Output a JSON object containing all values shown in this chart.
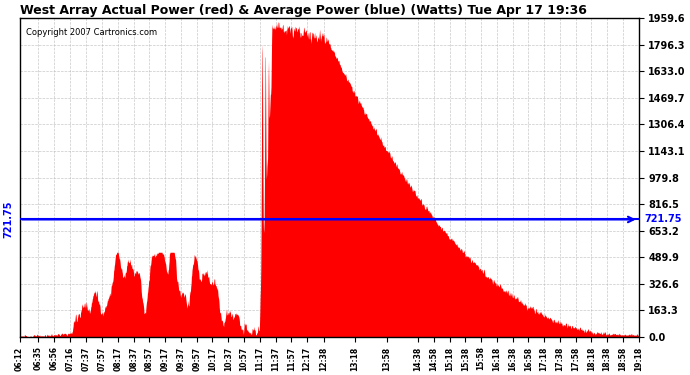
{
  "title": "West Array Actual Power (red) & Average Power (blue) (Watts) Tue Apr 17 19:36",
  "copyright": "Copyright 2007 Cartronics.com",
  "avg_power": 721.75,
  "y_max": 1959.6,
  "y_min": 0.0,
  "y_ticks": [
    0.0,
    163.3,
    326.6,
    489.9,
    653.2,
    816.5,
    979.8,
    1143.1,
    1306.4,
    1469.7,
    1633.0,
    1796.3,
    1959.6
  ],
  "bg_color": "#ffffff",
  "plot_bg_color": "#ffffff",
  "grid_color": "#cccccc",
  "fill_color": "#ff0000",
  "line_color": "#ff0000",
  "avg_line_color": "#0000ff",
  "x_labels": [
    "06:12",
    "06:35",
    "06:56",
    "07:16",
    "07:37",
    "07:57",
    "08:17",
    "08:37",
    "08:57",
    "09:17",
    "09:37",
    "09:57",
    "10:17",
    "10:37",
    "10:57",
    "11:17",
    "11:37",
    "11:57",
    "12:17",
    "12:38",
    "13:18",
    "13:58",
    "14:38",
    "14:58",
    "15:18",
    "15:38",
    "15:58",
    "16:18",
    "16:38",
    "16:58",
    "17:18",
    "17:38",
    "17:58",
    "18:18",
    "18:38",
    "18:58",
    "19:18"
  ]
}
